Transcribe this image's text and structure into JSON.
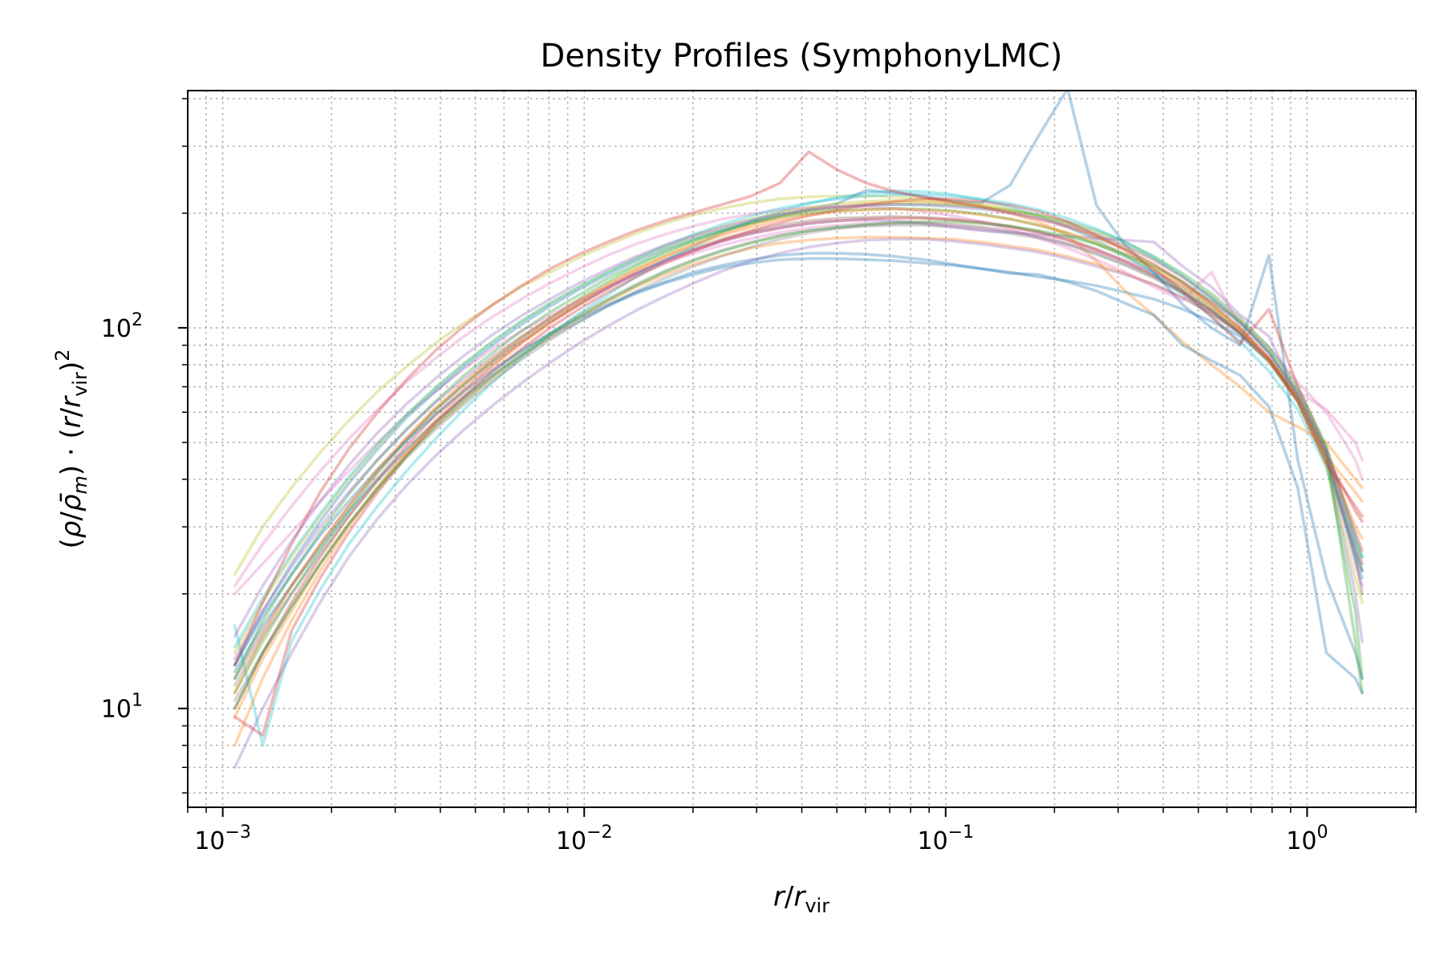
{
  "chart_data": {
    "type": "line",
    "title": "Density Profiles (SymphonyLMC)",
    "xlabel": "r/r_vir",
    "ylabel": "(ρ/ρ̄_m)·(r/r_vir)^2",
    "x_scale": "log",
    "y_scale": "log",
    "xlim": [
      0.0008,
      2.0
    ],
    "ylim": [
      5.5,
      420
    ],
    "x_ticks": [
      {
        "value": 0.001,
        "base": "10",
        "exp": "−3"
      },
      {
        "value": 0.01,
        "base": "10",
        "exp": "−2"
      },
      {
        "value": 0.1,
        "base": "10",
        "exp": "−1"
      },
      {
        "value": 1,
        "base": "10",
        "exp": "0"
      }
    ],
    "y_ticks": [
      {
        "value": 10,
        "base": "10",
        "exp": "1"
      },
      {
        "value": 100,
        "base": "10",
        "exp": "2"
      }
    ],
    "grid": "major and minor, dotted",
    "legend": "none",
    "x": [
      0.00108,
      0.00129,
      0.00155,
      0.00186,
      0.00223,
      0.00268,
      0.00322,
      0.00387,
      0.00465,
      0.00558,
      0.0067,
      0.00805,
      0.00967,
      0.0116,
      0.0139,
      0.0167,
      0.0201,
      0.0241,
      0.029,
      0.0348,
      0.0418,
      0.0502,
      0.0603,
      0.0724,
      0.087,
      0.1045,
      0.1255,
      0.1507,
      0.181,
      0.2174,
      0.2612,
      0.3137,
      0.3768,
      0.4526,
      0.5436,
      0.653,
      0.7843,
      0.942,
      1.13,
      1.36,
      1.42
    ],
    "series": [
      {
        "color": "#1f77b4",
        "values": [
          12.5,
          16.5,
          21,
          26.5,
          33,
          40,
          48,
          56.5,
          65.5,
          75,
          84.5,
          94.5,
          104,
          114,
          123,
          131,
          138,
          144,
          148,
          151,
          152,
          152,
          151,
          150,
          148,
          146,
          143,
          140,
          136,
          133,
          129,
          124,
          119,
          112,
          104,
          95,
          82,
          66,
          47,
          25,
          22
        ]
      },
      {
        "color": "#ff7f0e",
        "values": [
          9.5,
          13.5,
          18,
          24,
          30.5,
          38,
          46.5,
          55,
          64,
          74,
          84,
          95,
          106,
          117,
          128,
          138,
          147,
          155,
          162,
          167,
          170,
          172,
          173,
          173,
          172,
          171,
          168,
          164,
          160,
          154,
          147,
          139,
          130,
          120,
          109,
          97,
          83,
          66,
          46,
          37,
          35
        ]
      },
      {
        "color": "#2ca02c",
        "values": [
          11,
          15,
          20,
          26,
          33,
          41.5,
          50.5,
          60.5,
          71,
          82,
          94,
          106,
          119,
          132,
          145,
          157,
          169,
          179,
          188,
          195,
          200,
          203,
          205,
          206,
          205,
          203,
          199,
          193,
          186,
          177,
          166,
          154,
          141,
          127,
          113,
          98,
          82,
          64,
          44,
          18,
          12
        ]
      },
      {
        "color": "#d62728",
        "values": [
          10,
          14,
          19,
          25,
          32,
          40,
          49,
          59,
          69,
          80,
          91.5,
          103,
          115,
          127,
          139,
          150,
          160,
          169,
          177,
          183,
          188,
          191,
          193,
          194,
          194,
          192,
          189,
          184,
          178,
          170,
          160,
          149,
          137,
          124,
          111,
          97,
          82,
          65,
          46,
          33,
          31
        ]
      },
      {
        "color": "#9467bd",
        "values": [
          7,
          10,
          14,
          19,
          25,
          31.5,
          38.5,
          46,
          54,
          62.5,
          71.5,
          81,
          91,
          101,
          111,
          121,
          131,
          141,
          150,
          157,
          163,
          167,
          170,
          171,
          171,
          169,
          166,
          162,
          158,
          152,
          145,
          138,
          130,
          120,
          109,
          97,
          83,
          66,
          46,
          20,
          15
        ]
      },
      {
        "color": "#8c564b",
        "values": [
          12,
          16,
          21,
          27,
          34,
          42,
          51,
          61,
          71,
          81.5,
          92.5,
          104,
          115,
          127,
          139,
          151,
          162,
          171,
          179,
          186,
          191,
          194,
          195,
          196,
          195,
          193,
          190,
          185,
          179,
          171,
          161,
          150,
          138,
          125,
          111,
          97,
          82,
          65,
          46,
          25,
          20
        ]
      },
      {
        "color": "#e377c2",
        "values": [
          20,
          24,
          29,
          35,
          42,
          50,
          59,
          68,
          78,
          88,
          98,
          108,
          118,
          128,
          138,
          148,
          157,
          165,
          172,
          178,
          183,
          186,
          188,
          189,
          188,
          186,
          183,
          179,
          174,
          167,
          159,
          150,
          140,
          129,
          117,
          104,
          89,
          72,
          60,
          45,
          40
        ]
      },
      {
        "color": "#7f7f7f",
        "values": [
          11.5,
          15.5,
          20,
          25.5,
          32,
          39.5,
          47.5,
          56.5,
          66,
          76,
          86.5,
          97,
          108,
          119,
          130,
          141,
          151,
          160,
          168,
          175,
          180,
          183,
          185,
          186,
          186,
          184,
          181,
          177,
          172,
          165,
          156,
          146,
          135,
          123,
          110,
          96,
          81,
          64,
          45,
          26,
          23
        ]
      },
      {
        "color": "#bcbd22",
        "values": [
          22.5,
          30,
          38,
          47,
          57,
          68,
          79,
          91,
          103,
          115,
          128,
          140,
          153,
          165,
          177,
          188,
          198,
          206,
          213,
          218,
          221,
          222,
          222,
          221,
          219,
          216,
          211,
          205,
          197,
          188,
          177,
          165,
          151,
          136,
          121,
          104,
          86,
          66,
          45,
          27,
          24
        ]
      },
      {
        "color": "#17becf",
        "values": [
          16.5,
          8,
          15,
          20.5,
          27,
          34,
          42,
          51,
          61,
          72,
          83.5,
          96,
          109,
          122,
          136,
          150,
          164,
          178,
          191,
          202,
          212,
          220,
          226,
          229,
          228,
          224,
          217,
          208,
          197,
          184,
          170,
          155,
          139,
          123,
          107,
          92,
          77,
          61,
          43,
          26,
          23
        ]
      },
      {
        "color": "#1f77b4",
        "values": [
          13,
          18,
          24,
          31,
          39,
          48,
          58,
          68,
          79,
          90,
          102,
          114,
          126,
          138,
          150,
          161,
          172,
          181,
          190,
          198,
          205,
          212,
          230,
          226,
          222,
          215,
          213,
          237,
          320,
          425,
          210,
          165,
          140,
          115,
          100,
          90,
          155,
          45,
          22,
          14,
          12
        ]
      },
      {
        "color": "#ff7f0e",
        "values": [
          8,
          12,
          17,
          23,
          30,
          38,
          47,
          57,
          68,
          79,
          91,
          103,
          116,
          129,
          142,
          154,
          166,
          177,
          187,
          196,
          203,
          208,
          212,
          214,
          214,
          212,
          208,
          200,
          190,
          175,
          150,
          125,
          108,
          92,
          80,
          70,
          60,
          55,
          50,
          40,
          38
        ]
      },
      {
        "color": "#2ca02c",
        "values": [
          12,
          17,
          22.5,
          29,
          36.5,
          45,
          54,
          64,
          75,
          86,
          98,
          110,
          122,
          135,
          147,
          159,
          170,
          180,
          189,
          197,
          203,
          207,
          210,
          211,
          211,
          210,
          207,
          203,
          198,
          190,
          180,
          168,
          154,
          139,
          123,
          106,
          89,
          70,
          49,
          28,
          25
        ]
      },
      {
        "color": "#d62728",
        "values": [
          9.5,
          8.5,
          16,
          22,
          29,
          37,
          46,
          56,
          66,
          77,
          88,
          100,
          112,
          124,
          136,
          148,
          159,
          170,
          180,
          189,
          197,
          204,
          210,
          215,
          218,
          218,
          215,
          210,
          202,
          190,
          175,
          160,
          143,
          125,
          107,
          91,
          112,
          70,
          48,
          29,
          26
        ]
      },
      {
        "color": "#9467bd",
        "values": [
          13.5,
          18,
          23.5,
          30,
          37,
          45,
          54,
          63.5,
          73.5,
          84,
          95,
          106,
          117,
          128,
          139,
          150,
          160,
          169,
          177,
          183,
          188,
          191,
          192,
          191,
          188,
          184,
          180,
          178,
          176,
          174,
          172,
          170,
          168,
          145,
          128,
          108,
          95,
          66,
          46,
          24,
          21
        ]
      },
      {
        "color": "#e377c2",
        "values": [
          21,
          27,
          34,
          42,
          51,
          61,
          72,
          83,
          95,
          107,
          119,
          131,
          143,
          155,
          166,
          176,
          185,
          193,
          199,
          204,
          207,
          208,
          208,
          206,
          202,
          197,
          190,
          182,
          172,
          162,
          151,
          140,
          128,
          118,
          140,
          100,
          85,
          68,
          61,
          50,
          45
        ]
      },
      {
        "color": "#7f7f7f",
        "values": [
          10.5,
          14,
          18.5,
          24,
          30.5,
          37.5,
          45.5,
          54,
          63,
          72.5,
          82.5,
          93,
          103.5,
          114,
          124.5,
          135,
          145,
          154.5,
          163,
          171,
          177.5,
          182.5,
          186,
          188,
          188.5,
          187,
          184,
          179.5,
          173.5,
          166,
          157,
          147,
          136,
          124,
          111,
          97,
          82,
          65,
          46,
          26,
          23
        ]
      },
      {
        "color": "#bcbd22",
        "values": [
          14,
          19,
          25,
          32,
          40,
          49,
          59,
          69.5,
          80.5,
          92,
          104,
          116,
          128,
          140,
          152,
          163,
          174,
          184,
          193,
          201,
          207,
          212,
          215,
          216,
          216,
          214,
          210,
          204,
          196,
          186,
          174,
          161,
          146,
          131,
          115,
          99,
          82,
          64,
          44,
          22,
          19
        ]
      },
      {
        "color": "#17becf",
        "values": [
          14.5,
          19.5,
          25.5,
          32.5,
          40.5,
          49.5,
          59,
          69.5,
          80.5,
          92,
          104,
          116,
          128,
          140,
          152,
          164,
          176,
          187,
          197,
          206,
          213,
          218,
          222,
          224,
          224,
          222,
          218,
          212,
          204,
          194,
          182,
          168,
          153,
          137,
          120,
          103,
          86,
          67,
          47,
          28,
          25
        ]
      },
      {
        "color": "#1f77b4",
        "values": [
          13,
          17.5,
          22.5,
          28.5,
          35,
          42.5,
          50.5,
          59,
          68,
          77.5,
          87,
          96.5,
          106,
          115,
          124,
          132,
          140,
          146,
          151,
          155,
          157,
          157,
          156,
          154,
          151,
          147,
          143,
          139,
          138,
          132,
          125,
          116,
          108,
          90,
          82,
          75,
          62,
          38,
          14,
          12,
          11
        ]
      },
      {
        "color": "#ff7f0e",
        "values": [
          11,
          15.5,
          21,
          27,
          34,
          42.5,
          51.5,
          61.5,
          72,
          83,
          94.5,
          106,
          118,
          130,
          142,
          154,
          165,
          175,
          184,
          192,
          198,
          202,
          204,
          205,
          204,
          202,
          198,
          193,
          186,
          178,
          168,
          156,
          143,
          129,
          114,
          99,
          83,
          66,
          46,
          30,
          28
        ]
      },
      {
        "color": "#2ca02c",
        "values": [
          10,
          14,
          18.5,
          24,
          30.5,
          38,
          46,
          55,
          64.5,
          74.5,
          85,
          96,
          107,
          118,
          129,
          140,
          150,
          159,
          167,
          174,
          180,
          184,
          187,
          189,
          190,
          190,
          188,
          185,
          180,
          174,
          166,
          156,
          145,
          132,
          118,
          103,
          87,
          68,
          48,
          15,
          11
        ]
      },
      {
        "color": "#d62728",
        "values": [
          13,
          19,
          27,
          37,
          48,
          60,
          73,
          87,
          101,
          115,
          129,
          143,
          156,
          168,
          180,
          191,
          201,
          211,
          222,
          240,
          290,
          260,
          240,
          228,
          220,
          214,
          208,
          201,
          193,
          184,
          173,
          161,
          147,
          132,
          116,
          100,
          83,
          64,
          44,
          34,
          32
        ]
      },
      {
        "color": "#9467bd",
        "values": [
          15.5,
          21,
          27.5,
          35,
          43.5,
          53,
          63,
          73.5,
          84.5,
          96,
          107.5,
          119,
          131,
          142.5,
          154,
          165,
          175,
          184,
          192,
          199,
          204,
          208,
          210,
          211,
          210,
          208,
          205,
          200,
          194,
          186,
          176,
          164,
          151,
          136,
          120,
          104,
          86,
          67,
          47,
          27,
          24
        ]
      }
    ]
  }
}
